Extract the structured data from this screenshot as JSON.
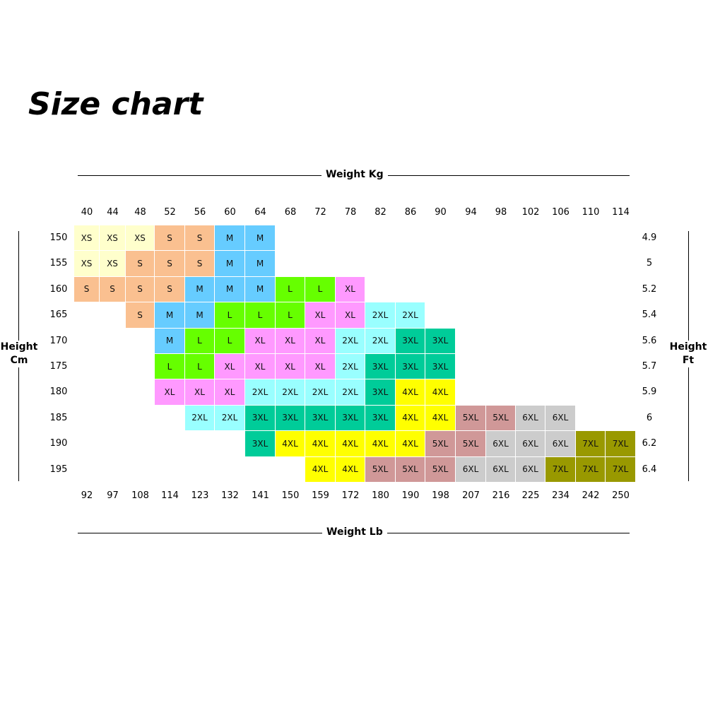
{
  "title": "Size chart",
  "chart_data": {
    "type": "heatmap",
    "top_axis_title": "Weight Kg",
    "bottom_axis_title": "Weight Lb",
    "left_axis_title": [
      "Height",
      "Cm"
    ],
    "right_axis_title": [
      "Height",
      "Ft"
    ],
    "weight_kg": [
      "40",
      "44",
      "48",
      "52",
      "56",
      "60",
      "64",
      "68",
      "72",
      "78",
      "82",
      "86",
      "90",
      "94",
      "98",
      "102",
      "106",
      "110",
      "114"
    ],
    "weight_lb": [
      "92",
      "97",
      "108",
      "114",
      "123",
      "132",
      "141",
      "150",
      "159",
      "172",
      "180",
      "190",
      "198",
      "207",
      "216",
      "225",
      "234",
      "242",
      "250"
    ],
    "height_cm": [
      "150",
      "155",
      "160",
      "165",
      "170",
      "175",
      "180",
      "185",
      "190",
      "195"
    ],
    "height_ft": [
      "4.9",
      "5",
      "5.2",
      "5.4",
      "5.6",
      "5.7",
      "5.9",
      "6",
      "6.2",
      "6.4"
    ],
    "grid": [
      [
        "XS",
        "XS",
        "XS",
        "S",
        "S",
        "M",
        "M",
        null,
        null,
        null,
        null,
        null,
        null,
        null,
        null,
        null,
        null,
        null,
        null
      ],
      [
        "XS",
        "XS",
        "S",
        "S",
        "S",
        "M",
        "M",
        null,
        null,
        null,
        null,
        null,
        null,
        null,
        null,
        null,
        null,
        null,
        null
      ],
      [
        "S",
        "S",
        "S",
        "S",
        "M",
        "M",
        "M",
        "L",
        "L",
        "XL",
        null,
        null,
        null,
        null,
        null,
        null,
        null,
        null,
        null
      ],
      [
        null,
        null,
        "S",
        "M",
        "M",
        "L",
        "L",
        "L",
        "XL",
        "XL",
        "2XL",
        "2XL",
        null,
        null,
        null,
        null,
        null,
        null,
        null
      ],
      [
        null,
        null,
        null,
        "M",
        "L",
        "L",
        "XL",
        "XL",
        "XL",
        "2XL",
        "2XL",
        "3XL",
        "3XL",
        null,
        null,
        null,
        null,
        null,
        null
      ],
      [
        null,
        null,
        null,
        "L",
        "L",
        "XL",
        "XL",
        "XL",
        "XL",
        "2XL",
        "3XL",
        "3XL",
        "3XL",
        null,
        null,
        null,
        null,
        null,
        null
      ],
      [
        null,
        null,
        null,
        "XL",
        "XL",
        "XL",
        "2XL",
        "2XL",
        "2XL",
        "2XL",
        "3XL",
        "4XL",
        "4XL",
        null,
        null,
        null,
        null,
        null,
        null
      ],
      [
        null,
        null,
        null,
        null,
        "2XL",
        "2XL",
        "3XL",
        "3XL",
        "3XL",
        "3XL",
        "3XL",
        "4XL",
        "4XL",
        "5XL",
        "5XL",
        "6XL",
        "6XL",
        null,
        null
      ],
      [
        null,
        null,
        null,
        null,
        null,
        null,
        "3XL",
        "4XL",
        "4XL",
        "4XL",
        "4XL",
        "4XL",
        "5XL",
        "5XL",
        "6XL",
        "6XL",
        "6XL",
        "7XL",
        "7XL"
      ],
      [
        null,
        null,
        null,
        null,
        null,
        null,
        null,
        null,
        "4XL",
        "4XL",
        "5XL",
        "5XL",
        "5XL",
        "6XL",
        "6XL",
        "6XL",
        "7XL",
        "7XL",
        "7XL"
      ]
    ],
    "size_colors": {
      "XS": "#ffffcc",
      "S": "#fac090",
      "M": "#66ccff",
      "L": "#66ff00",
      "XL": "#ff99ff",
      "2XL": "#99ffff",
      "3XL": "#00cc99",
      "4XL": "#ffff00",
      "5XL": "#d09898",
      "6XL": "#cccccc",
      "7XL": "#999900"
    }
  }
}
